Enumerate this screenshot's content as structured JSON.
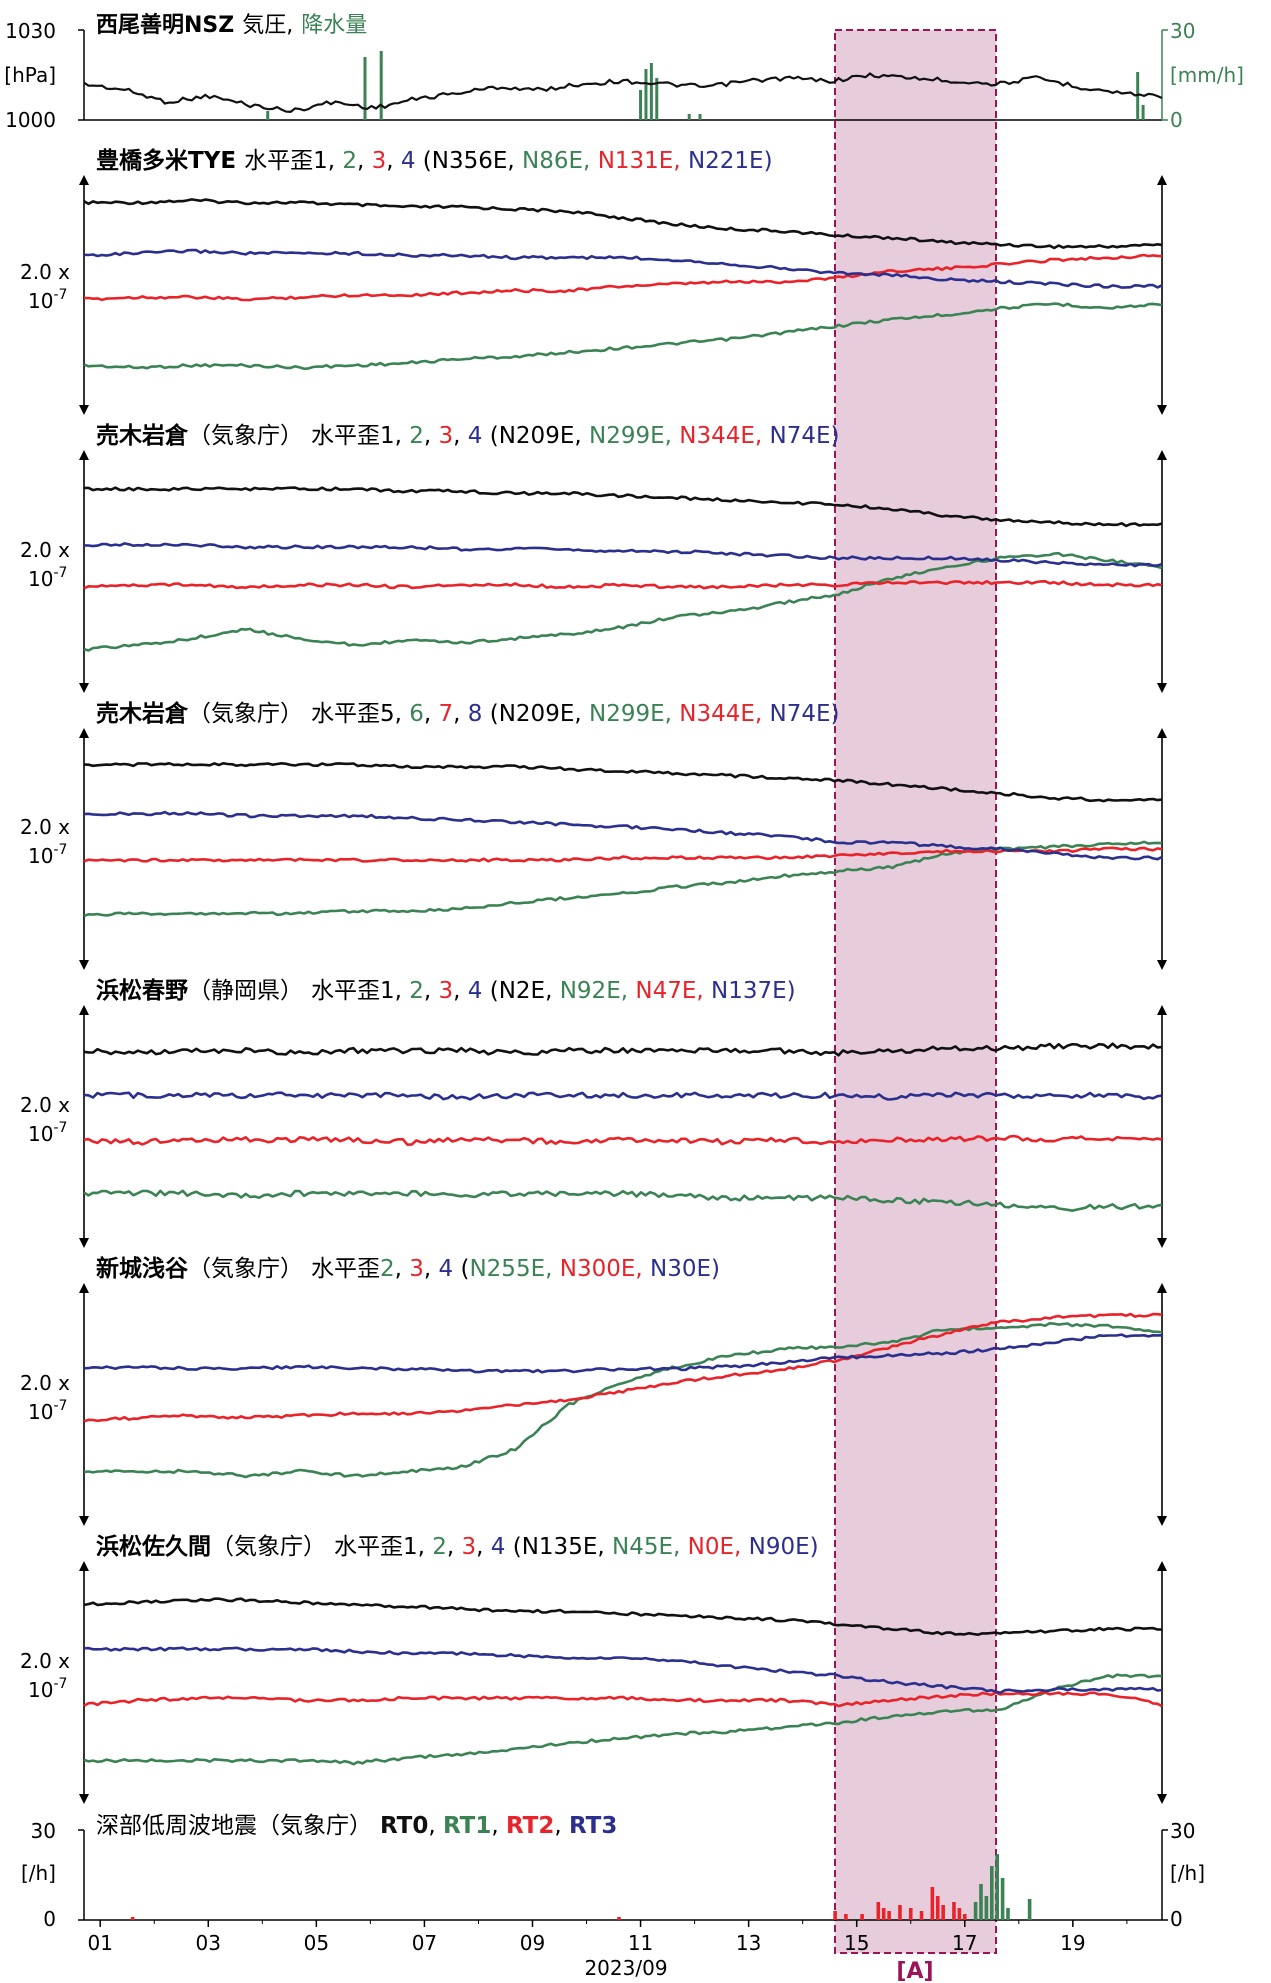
{
  "colors": {
    "ch1": "#111111",
    "ch2": "#3b8354",
    "ch3": "#e8232a",
    "ch4": "#2b2f8e",
    "rain": "#3b8354",
    "highlight": "#cf9bb8",
    "highlight_border": "#9c1458"
  },
  "common": {
    "scale": "2.0 x",
    "scale_exp": "10",
    "scale_pow": "-7",
    "highlight_label": "[A]"
  },
  "x_axis": {
    "ticks": [
      "01",
      "03",
      "05",
      "07",
      "09",
      "11",
      "13",
      "15",
      "17",
      "19"
    ],
    "xlabel": "2023/09",
    "range_days": [
      0.7,
      20.65
    ]
  },
  "chart_data": [
    {
      "type": "line",
      "title_station": "西尾善明NSZ",
      "title_a": "気圧,",
      "title_b": "降水量",
      "left_ticks": [
        "1030",
        "[hPa]",
        "1000"
      ],
      "right_ticks": [
        "30",
        "[mm/h]",
        "0"
      ],
      "pressure_hpa": [
        1012,
        1010,
        1006,
        1008,
        1005,
        1003,
        1006,
        1004,
        1007,
        1009,
        1011,
        1010,
        1012,
        1013,
        1012,
        1011,
        1013,
        1014,
        1013,
        1015,
        1014,
        1013,
        1012,
        1014,
        1011,
        1009,
        1008
      ],
      "rain_mmh": [
        [
          4.1,
          3
        ],
        [
          5.9,
          21
        ],
        [
          6.2,
          23
        ],
        [
          11.0,
          10
        ],
        [
          11.1,
          17
        ],
        [
          11.2,
          19
        ],
        [
          11.3,
          14
        ],
        [
          11.9,
          2
        ],
        [
          12.1,
          2
        ],
        [
          20.2,
          16
        ],
        [
          20.3,
          5
        ]
      ]
    },
    {
      "type": "line",
      "title_station": "豊橋多米TYE",
      "title_pre": "水平歪1, ",
      "c2": "2",
      "c3": "3",
      "c4": "4",
      "paren_open": " (N356E, ",
      "o2": "N86E,",
      "o3": "N131E,",
      "o4": "N221E)",
      "o4_space": " ",
      "series": [
        {
          "label": "1",
          "values": [
            0.92,
            0.92,
            0.93,
            0.92,
            0.92,
            0.91,
            0.9,
            0.9,
            0.89,
            0.88,
            0.85,
            0.82,
            0.8,
            0.79,
            0.77,
            0.76,
            0.74,
            0.73,
            0.72,
            0.72,
            0.73
          ]
        },
        {
          "label": "2",
          "values": [
            0.18,
            0.17,
            0.18,
            0.18,
            0.17,
            0.18,
            0.19,
            0.21,
            0.22,
            0.24,
            0.26,
            0.28,
            0.3,
            0.33,
            0.36,
            0.39,
            0.41,
            0.44,
            0.46,
            0.44,
            0.46
          ]
        },
        {
          "label": "3",
          "values": [
            0.48,
            0.49,
            0.49,
            0.48,
            0.49,
            0.5,
            0.5,
            0.51,
            0.52,
            0.52,
            0.54,
            0.55,
            0.56,
            0.56,
            0.58,
            0.61,
            0.62,
            0.64,
            0.66,
            0.67,
            0.68
          ]
        },
        {
          "label": "4",
          "values": [
            0.68,
            0.69,
            0.7,
            0.69,
            0.69,
            0.69,
            0.68,
            0.68,
            0.67,
            0.67,
            0.67,
            0.66,
            0.64,
            0.62,
            0.6,
            0.59,
            0.57,
            0.56,
            0.55,
            0.54,
            0.54
          ]
        }
      ]
    },
    {
      "type": "line",
      "title_station": "売木岩倉",
      "title_paren": "（気象庁）",
      "title_pre": "水平歪1, ",
      "c2": "2",
      "c3": "3",
      "c4": "4",
      "paren_open": " (N209E, ",
      "o2": "N299E,",
      "o3": "N344E,",
      "o4": "N74E)",
      "o4_space": " ",
      "series": [
        {
          "label": "1",
          "values": [
            0.87,
            0.87,
            0.87,
            0.87,
            0.87,
            0.87,
            0.86,
            0.86,
            0.85,
            0.85,
            0.84,
            0.83,
            0.82,
            0.81,
            0.8,
            0.78,
            0.75,
            0.73,
            0.72,
            0.71,
            0.71
          ]
        },
        {
          "label": "2",
          "values": [
            0.15,
            0.17,
            0.2,
            0.24,
            0.2,
            0.17,
            0.19,
            0.18,
            0.2,
            0.22,
            0.25,
            0.3,
            0.32,
            0.36,
            0.4,
            0.47,
            0.52,
            0.56,
            0.58,
            0.55,
            0.52
          ]
        },
        {
          "label": "3",
          "values": [
            0.43,
            0.44,
            0.44,
            0.43,
            0.44,
            0.44,
            0.43,
            0.44,
            0.44,
            0.43,
            0.44,
            0.43,
            0.43,
            0.44,
            0.44,
            0.45,
            0.45,
            0.45,
            0.45,
            0.44,
            0.44
          ]
        },
        {
          "label": "4",
          "values": [
            0.62,
            0.62,
            0.62,
            0.61,
            0.61,
            0.61,
            0.61,
            0.6,
            0.6,
            0.6,
            0.59,
            0.59,
            0.58,
            0.57,
            0.56,
            0.56,
            0.56,
            0.55,
            0.54,
            0.53,
            0.53
          ]
        }
      ]
    },
    {
      "type": "line",
      "title_station": "売木岩倉",
      "title_paren": "（気象庁）",
      "title_pre": "水平歪5, ",
      "c2": "6",
      "c3": "7",
      "c4": "8",
      "paren_open": " (N209E, ",
      "o2": "N299E,",
      "o3": "N344E,",
      "o4": "N74E)",
      "o4_space": " ",
      "series": [
        {
          "label": "5",
          "values": [
            0.88,
            0.88,
            0.88,
            0.88,
            0.88,
            0.88,
            0.87,
            0.87,
            0.87,
            0.86,
            0.85,
            0.84,
            0.83,
            0.82,
            0.81,
            0.79,
            0.77,
            0.75,
            0.73,
            0.72,
            0.72
          ]
        },
        {
          "label": "6",
          "values": [
            0.2,
            0.21,
            0.21,
            0.21,
            0.21,
            0.22,
            0.22,
            0.23,
            0.26,
            0.28,
            0.3,
            0.33,
            0.35,
            0.38,
            0.4,
            0.42,
            0.48,
            0.5,
            0.51,
            0.52,
            0.53
          ]
        },
        {
          "label": "7",
          "values": [
            0.45,
            0.45,
            0.45,
            0.45,
            0.45,
            0.45,
            0.45,
            0.45,
            0.45,
            0.45,
            0.46,
            0.46,
            0.46,
            0.46,
            0.47,
            0.48,
            0.49,
            0.49,
            0.49,
            0.5,
            0.5
          ]
        },
        {
          "label": "8",
          "values": [
            0.66,
            0.66,
            0.66,
            0.65,
            0.65,
            0.65,
            0.64,
            0.63,
            0.62,
            0.61,
            0.6,
            0.59,
            0.57,
            0.56,
            0.53,
            0.53,
            0.51,
            0.5,
            0.48,
            0.46,
            0.46
          ]
        }
      ]
    },
    {
      "type": "line",
      "title_station": "浜松春野",
      "title_paren": "（静岡県）",
      "title_pre": "水平歪1, ",
      "c2": "2",
      "c3": "3",
      "c4": "4",
      "paren_open": " (N2E, ",
      "o2": "N92E,",
      "o3": "N47E,",
      "o4": "N137E)",
      "o4_space": " ",
      "series": [
        {
          "label": "1",
          "values": [
            0.84,
            0.83,
            0.84,
            0.84,
            0.83,
            0.84,
            0.84,
            0.84,
            0.83,
            0.84,
            0.84,
            0.84,
            0.84,
            0.84,
            0.83,
            0.84,
            0.85,
            0.85,
            0.86,
            0.86,
            0.86
          ]
        },
        {
          "label": "2",
          "values": [
            0.2,
            0.2,
            0.2,
            0.19,
            0.2,
            0.2,
            0.2,
            0.19,
            0.2,
            0.2,
            0.2,
            0.19,
            0.18,
            0.18,
            0.18,
            0.17,
            0.16,
            0.15,
            0.13,
            0.14,
            0.14
          ]
        },
        {
          "label": "3",
          "values": [
            0.44,
            0.43,
            0.44,
            0.44,
            0.44,
            0.44,
            0.43,
            0.44,
            0.44,
            0.43,
            0.44,
            0.44,
            0.43,
            0.44,
            0.43,
            0.44,
            0.44,
            0.45,
            0.44,
            0.45,
            0.44
          ]
        },
        {
          "label": "4",
          "values": [
            0.64,
            0.64,
            0.64,
            0.64,
            0.64,
            0.64,
            0.64,
            0.63,
            0.64,
            0.64,
            0.64,
            0.64,
            0.64,
            0.64,
            0.64,
            0.63,
            0.64,
            0.64,
            0.64,
            0.64,
            0.63
          ]
        }
      ]
    },
    {
      "type": "line",
      "title_station": "新城浅谷",
      "title_paren": "（気象庁）",
      "title_pre": "水平歪",
      "c2": "2",
      "c3": "3",
      "c4": "4",
      "paren_open": " (",
      "o2": "N255E,",
      "o3": "N300E,",
      "o4": "N30E)",
      "o4_space": " ",
      "series": [
        {
          "label": "2",
          "values": [
            0.2,
            0.2,
            0.2,
            0.18,
            0.2,
            0.18,
            0.2,
            0.22,
            0.3,
            0.5,
            0.6,
            0.67,
            0.72,
            0.75,
            0.76,
            0.78,
            0.84,
            0.84,
            0.86,
            0.85,
            0.82
          ]
        },
        {
          "label": "3",
          "values": [
            0.43,
            0.44,
            0.45,
            0.44,
            0.45,
            0.46,
            0.46,
            0.47,
            0.5,
            0.52,
            0.56,
            0.6,
            0.63,
            0.66,
            0.7,
            0.76,
            0.82,
            0.87,
            0.89,
            0.9,
            0.9
          ]
        },
        {
          "label": "4",
          "values": [
            0.66,
            0.67,
            0.66,
            0.66,
            0.67,
            0.66,
            0.66,
            0.65,
            0.65,
            0.65,
            0.66,
            0.66,
            0.67,
            0.69,
            0.71,
            0.72,
            0.73,
            0.75,
            0.78,
            0.81,
            0.81
          ]
        }
      ]
    },
    {
      "type": "line",
      "title_station": "浜松佐久間",
      "title_paren": "（気象庁）",
      "title_pre": "水平歪1, ",
      "c2": "2",
      "c3": "3",
      "c4": "4",
      "paren_open": " (N135E, ",
      "o2": "N45E,",
      "o3": "N0E,",
      "o4": "N90E)",
      "o4_space": " ",
      "series": [
        {
          "label": "1",
          "values": [
            0.85,
            0.86,
            0.87,
            0.87,
            0.86,
            0.85,
            0.84,
            0.83,
            0.82,
            0.82,
            0.81,
            0.8,
            0.79,
            0.78,
            0.76,
            0.74,
            0.72,
            0.72,
            0.73,
            0.74,
            0.74
          ]
        },
        {
          "label": "2",
          "values": [
            0.15,
            0.15,
            0.15,
            0.15,
            0.15,
            0.14,
            0.16,
            0.18,
            0.2,
            0.23,
            0.25,
            0.27,
            0.28,
            0.3,
            0.32,
            0.35,
            0.37,
            0.38,
            0.47,
            0.53,
            0.53
          ]
        },
        {
          "label": "3",
          "values": [
            0.4,
            0.42,
            0.43,
            0.43,
            0.42,
            0.42,
            0.43,
            0.43,
            0.43,
            0.43,
            0.43,
            0.42,
            0.42,
            0.42,
            0.4,
            0.42,
            0.44,
            0.45,
            0.45,
            0.45,
            0.4
          ]
        },
        {
          "label": "4",
          "values": [
            0.65,
            0.65,
            0.65,
            0.65,
            0.65,
            0.64,
            0.63,
            0.63,
            0.62,
            0.61,
            0.61,
            0.6,
            0.57,
            0.55,
            0.53,
            0.5,
            0.48,
            0.46,
            0.47,
            0.47,
            0.47
          ]
        }
      ]
    },
    {
      "type": "bar",
      "title_a": "深部低周波地震（気象庁）",
      "t0": "RT0",
      "t1": "RT1",
      "t2": "RT2",
      "t3": "RT3",
      "sep1": ", ",
      "sep2": ", ",
      "sep3": ", ",
      "left_ticks": [
        "30",
        "[/h]",
        "0"
      ],
      "right_ticks": [
        "30",
        "[/h]",
        "0"
      ],
      "events": [
        {
          "day": 1.6,
          "rt": 2,
          "rate": 1
        },
        {
          "day": 10.6,
          "rt": 2,
          "rate": 1
        },
        {
          "day": 14.6,
          "rt": 2,
          "rate": 3
        },
        {
          "day": 14.8,
          "rt": 2,
          "rate": 2
        },
        {
          "day": 15.1,
          "rt": 2,
          "rate": 2
        },
        {
          "day": 15.4,
          "rt": 2,
          "rate": 6
        },
        {
          "day": 15.5,
          "rt": 2,
          "rate": 4
        },
        {
          "day": 15.6,
          "rt": 2,
          "rate": 3
        },
        {
          "day": 15.8,
          "rt": 2,
          "rate": 5
        },
        {
          "day": 16.0,
          "rt": 2,
          "rate": 4
        },
        {
          "day": 16.2,
          "rt": 2,
          "rate": 3
        },
        {
          "day": 16.4,
          "rt": 2,
          "rate": 11
        },
        {
          "day": 16.5,
          "rt": 2,
          "rate": 8
        },
        {
          "day": 16.6,
          "rt": 2,
          "rate": 5
        },
        {
          "day": 16.8,
          "rt": 2,
          "rate": 6
        },
        {
          "day": 16.9,
          "rt": 2,
          "rate": 4
        },
        {
          "day": 17.0,
          "rt": 2,
          "rate": 2
        },
        {
          "day": 17.2,
          "rt": 1,
          "rate": 6
        },
        {
          "day": 17.3,
          "rt": 1,
          "rate": 12
        },
        {
          "day": 17.4,
          "rt": 1,
          "rate": 8
        },
        {
          "day": 17.5,
          "rt": 1,
          "rate": 18
        },
        {
          "day": 17.6,
          "rt": 1,
          "rate": 22
        },
        {
          "day": 17.7,
          "rt": 1,
          "rate": 14
        },
        {
          "day": 17.8,
          "rt": 1,
          "rate": 4
        },
        {
          "day": 18.2,
          "rt": 1,
          "rate": 7
        }
      ]
    }
  ]
}
